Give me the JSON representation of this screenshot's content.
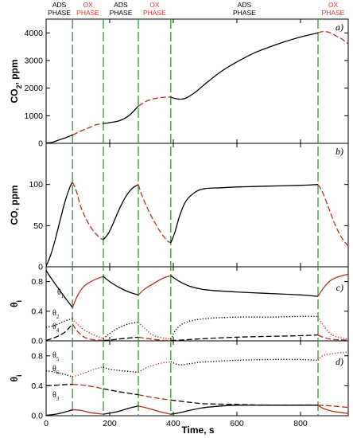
{
  "chart_data": {
    "type": "line",
    "xlabel": "Time, s",
    "xlim": [
      0,
      950
    ],
    "xticks": [
      "0",
      "200",
      "400",
      "600",
      "800"
    ],
    "phase_boundaries_s": [
      83,
      180,
      290,
      392,
      855
    ],
    "phases": [
      {
        "line1": "ADS",
        "line2": "PHASE",
        "type": "ads"
      },
      {
        "line1": "OX",
        "line2": "PHASE",
        "type": "ox"
      },
      {
        "line1": "ADS",
        "line2": "PHASE",
        "type": "ads"
      },
      {
        "line1": "OX",
        "line2": "PHASE",
        "type": "ox"
      },
      {
        "line1": "ADS",
        "line2": "PHASE",
        "type": "ads"
      },
      {
        "line1": "OX",
        "line2": "PHASE",
        "type": "ox"
      }
    ],
    "colors": {
      "ads": "#000000",
      "ox": "#b5321a",
      "boundary": "#2e9a2e",
      "ox_text": "#e8332a"
    },
    "panels": [
      {
        "id": "a",
        "tag": "a)",
        "ylabel": "CO2, ppm",
        "ylabel_main": "CO",
        "ylabel_sub": "2",
        "ylabel_rest": ", ppm",
        "ylim": [
          0,
          4500
        ],
        "yticks": [
          "0",
          "1000",
          "2000",
          "3000",
          "4000"
        ],
        "series": [
          {
            "x": [
              0,
              20,
              40,
              60,
              83,
              110,
              140,
              160,
              180,
              200,
              230,
              260,
              290,
              320,
              350,
              370,
              392,
              400,
              420,
              440,
              470,
              500,
              550,
              600,
              650,
              700,
              750,
              800,
              855,
              870,
              890,
              910,
              930,
              950
            ],
            "y": [
              0,
              40,
              120,
              200,
              300,
              450,
              590,
              680,
              720,
              750,
              820,
              1000,
              1350,
              1550,
              1640,
              1670,
              1680,
              1640,
              1600,
              1640,
              1860,
              2150,
              2600,
              2950,
              3250,
              3480,
              3680,
              3850,
              4000,
              4050,
              4020,
              3900,
              3780,
              3600
            ]
          }
        ]
      },
      {
        "id": "b",
        "tag": "b)",
        "ylabel": "CO, ppm",
        "ylim": [
          0,
          150
        ],
        "yticks": [
          "0",
          "50",
          "100"
        ],
        "series": [
          {
            "x": [
              0,
              15,
              30,
              45,
              60,
              75,
              83,
              95,
              110,
              130,
              150,
              170,
              180,
              195,
              210,
              230,
              250,
              270,
              290,
              300,
              320,
              340,
              360,
              380,
              392,
              405,
              420,
              440,
              470,
              500,
              550,
              600,
              700,
              800,
              855,
              870,
              890,
              910,
              930,
              950
            ],
            "y": [
              0,
              15,
              35,
              58,
              80,
              97,
              103,
              92,
              72,
              55,
              43,
              35,
              33,
              40,
              52,
              70,
              85,
              95,
              100,
              88,
              70,
              55,
              42,
              32,
              29,
              42,
              62,
              80,
              91,
              95,
              96,
              97,
              98,
              99,
              100,
              90,
              70,
              50,
              35,
              25
            ]
          }
        ]
      },
      {
        "id": "c",
        "tag": "c)",
        "ylabel": "θi",
        "ylabel_main": "θ",
        "ylabel_sub": "i",
        "ylim": [
          0,
          1
        ],
        "yticks": [
          "0.0",
          "0.4",
          "0.8"
        ],
        "series_labels": [
          {
            "main": "θ",
            "sub": "1"
          },
          {
            "main": "θ",
            "sub": "2"
          },
          {
            "main": "θ",
            "sub": "4"
          }
        ],
        "series": [
          {
            "name": "θ1",
            "dash": "solid",
            "x": [
              0,
              20,
              40,
              60,
              83,
              100,
              120,
              150,
              180,
              200,
              230,
              260,
              290,
              310,
              340,
              370,
              392,
              420,
              450,
              500,
              600,
              700,
              800,
              855,
              870,
              890,
              910,
              930,
              950
            ],
            "y": [
              0.95,
              0.82,
              0.7,
              0.58,
              0.45,
              0.62,
              0.74,
              0.82,
              0.87,
              0.8,
              0.72,
              0.66,
              0.62,
              0.7,
              0.78,
              0.85,
              0.88,
              0.8,
              0.74,
              0.69,
              0.66,
              0.64,
              0.62,
              0.6,
              0.7,
              0.8,
              0.85,
              0.88,
              0.9
            ]
          },
          {
            "name": "θ2",
            "dash": "dotted",
            "x": [
              0,
              20,
              40,
              60,
              83,
              100,
              130,
              180,
              200,
              230,
              260,
              290,
              310,
              340,
              392,
              410,
              440,
              500,
              600,
              700,
              800,
              855,
              870,
              900,
              950
            ],
            "y": [
              0.18,
              0.2,
              0.23,
              0.27,
              0.3,
              0.22,
              0.12,
              0.03,
              0.1,
              0.18,
              0.23,
              0.25,
              0.17,
              0.07,
              0.02,
              0.16,
              0.25,
              0.3,
              0.32,
              0.32,
              0.33,
              0.33,
              0.22,
              0.08,
              0.02
            ]
          },
          {
            "name": "θ4",
            "dash": "dashed",
            "x": [
              0,
              30,
              60,
              83,
              100,
              130,
              180,
              200,
              240,
              290,
              320,
              360,
              392,
              420,
              500,
              600,
              700,
              800,
              855,
              870,
              900,
              950
            ],
            "y": [
              0.0,
              0.05,
              0.12,
              0.23,
              0.12,
              0.03,
              0.0,
              0.01,
              0.03,
              0.05,
              0.03,
              0.01,
              0.0,
              0.01,
              0.03,
              0.05,
              0.06,
              0.07,
              0.08,
              0.05,
              0.02,
              0.01
            ]
          }
        ]
      },
      {
        "id": "d",
        "tag": "d)",
        "ylabel": "θi",
        "ylabel_main": "θ",
        "ylabel_sub": "i",
        "ylim": [
          0,
          1
        ],
        "yticks": [
          "0.0",
          "0.4",
          "0.8"
        ],
        "series_labels": [
          {
            "main": "θ",
            "sub": "5"
          },
          {
            "main": "θ",
            "sub": "6"
          },
          {
            "main": "θ",
            "sub": "3"
          }
        ],
        "series": [
          {
            "name": "θ5",
            "dash": "dotted",
            "x": [
              0,
              30,
              60,
              83,
              120,
              150,
              180,
              200,
              240,
              290,
              320,
              360,
              392,
              420,
              460,
              500,
              600,
              700,
              800,
              855,
              870,
              900,
              950
            ],
            "y": [
              0.6,
              0.58,
              0.55,
              0.52,
              0.57,
              0.62,
              0.65,
              0.62,
              0.6,
              0.58,
              0.65,
              0.7,
              0.72,
              0.68,
              0.7,
              0.72,
              0.74,
              0.75,
              0.75,
              0.74,
              0.8,
              0.83,
              0.85
            ]
          },
          {
            "name": "θ6",
            "dash": "dashed",
            "x": [
              0,
              40,
              83,
              130,
              180,
              230,
              290,
              340,
              392,
              450,
              500,
              600,
              700,
              800,
              855,
              900,
              950
            ],
            "y": [
              0.4,
              0.41,
              0.42,
              0.4,
              0.36,
              0.32,
              0.28,
              0.24,
              0.21,
              0.18,
              0.16,
              0.15,
              0.14,
              0.14,
              0.14,
              0.13,
              0.11
            ]
          },
          {
            "name": "θ3",
            "dash": "solid",
            "x": [
              0,
              30,
              60,
              83,
              110,
              140,
              180,
              220,
              260,
              290,
              320,
              360,
              392,
              420,
              460,
              500,
              550,
              600,
              700,
              800,
              855,
              870,
              900,
              950
            ],
            "y": [
              0.0,
              0.02,
              0.05,
              0.08,
              0.07,
              0.04,
              0.02,
              0.05,
              0.1,
              0.13,
              0.1,
              0.05,
              0.02,
              0.04,
              0.08,
              0.11,
              0.13,
              0.14,
              0.14,
              0.14,
              0.14,
              0.1,
              0.06,
              0.03
            ]
          }
        ]
      }
    ]
  }
}
